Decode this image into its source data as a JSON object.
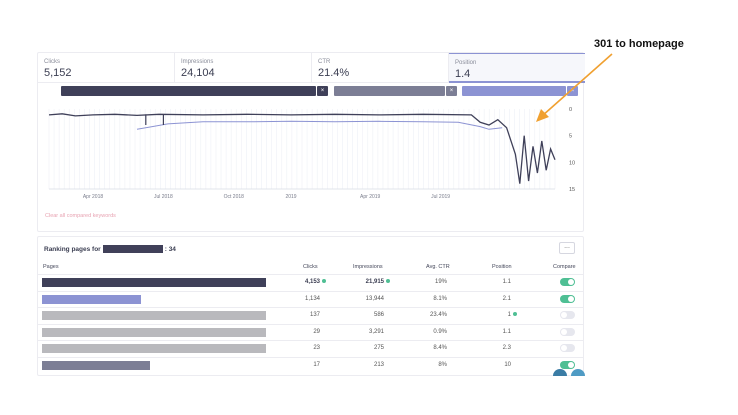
{
  "metrics": [
    {
      "label": "Clicks",
      "value": "5,152"
    },
    {
      "label": "Impressions",
      "value": "24,104"
    },
    {
      "label": "CTR",
      "value": "21.4%"
    },
    {
      "label": "Position",
      "value": "1.4"
    }
  ],
  "keyword_chips": [
    {
      "color": "#3f4059",
      "remove_label": "×"
    },
    {
      "color": "#7c7e95",
      "remove_label": "×"
    },
    {
      "color": "#8c93d3",
      "remove_label": "×"
    }
  ],
  "annotation": "301 to homepage",
  "chart_data": {
    "type": "line",
    "x_tick_labels": [
      "Apr 2018",
      "Jul 2018",
      "Oct 2018",
      "2019",
      "Apr 2019",
      "Jul 2019"
    ],
    "y_tick_labels": [
      "0",
      "5",
      "10",
      "15"
    ],
    "ylim": [
      15,
      0
    ],
    "y_axis_side": "right",
    "y_inverted": true,
    "grid": "vertical",
    "series": [
      {
        "color": "#3f4059",
        "points": [
          [
            0,
            1.1
          ],
          [
            0.03,
            0.9
          ],
          [
            0.06,
            1.3
          ],
          [
            0.1,
            1.1
          ],
          [
            0.15,
            1.0
          ],
          [
            0.2,
            1.2
          ],
          [
            0.25,
            1.0
          ],
          [
            0.35,
            1.1
          ],
          [
            0.45,
            1.0
          ],
          [
            0.55,
            1.1
          ],
          [
            0.65,
            1.0
          ],
          [
            0.75,
            1.1
          ],
          [
            0.85,
            1.0
          ],
          [
            0.96,
            1.1
          ],
          [
            0.98,
            2.5
          ],
          [
            1.0,
            3.0
          ],
          [
            1.02,
            2.0
          ],
          [
            1.04,
            3.5
          ],
          [
            1.06,
            8.5
          ],
          [
            1.07,
            14.0
          ],
          [
            1.08,
            5.0
          ],
          [
            1.09,
            13.5
          ],
          [
            1.1,
            7.0
          ],
          [
            1.11,
            12.0
          ],
          [
            1.12,
            6.0
          ],
          [
            1.13,
            11.5
          ],
          [
            1.14,
            7.5
          ],
          [
            1.15,
            9.5
          ]
        ]
      },
      {
        "color": "#8c93d3",
        "points": [
          [
            0.2,
            3.8
          ],
          [
            0.27,
            2.8
          ],
          [
            0.35,
            2.4
          ],
          [
            0.45,
            2.4
          ],
          [
            0.55,
            2.3
          ],
          [
            0.65,
            2.4
          ],
          [
            0.75,
            2.3
          ],
          [
            0.85,
            2.4
          ],
          [
            0.93,
            2.5
          ],
          [
            0.98,
            3.3
          ],
          [
            1.0,
            3.8
          ],
          [
            1.03,
            3.5
          ]
        ]
      }
    ]
  },
  "clear_link": "Clear all compared keywords",
  "ranking": {
    "title_prefix": "Ranking pages for",
    "title_suffix": ": 34",
    "more_label": "...",
    "headers": {
      "pages": "Pages",
      "clicks": "Clicks",
      "impressions": "Impressions",
      "ctr": "Avg. CTR",
      "position": "Position",
      "compare": "Compare"
    },
    "rows": [
      {
        "bar_color": "#3f4059",
        "bar_fraction": 1.0,
        "clicks": "4,153",
        "impressions": "21,915",
        "ctr": "19%",
        "position": "1.1",
        "clicks_dot": true,
        "impr_dot": true,
        "pos_dot": false,
        "bold": true,
        "compare": "on",
        "toggle_color": "#4fbf94"
      },
      {
        "bar_color": "#8c93d3",
        "bar_fraction": 0.44,
        "clicks": "1,134",
        "impressions": "13,944",
        "ctr": "8.1%",
        "position": "2.1",
        "clicks_dot": false,
        "impr_dot": false,
        "pos_dot": false,
        "bold": false,
        "compare": "on",
        "toggle_color": "#4fbf94"
      },
      {
        "bar_color": "#b9b9bd",
        "bar_fraction": 1.0,
        "clicks": "137",
        "impressions": "586",
        "ctr": "23.4%",
        "position": "1",
        "clicks_dot": false,
        "impr_dot": false,
        "pos_dot": true,
        "bold": false,
        "compare": "off",
        "toggle_color": "#e6e7ee"
      },
      {
        "bar_color": "#b9b9bd",
        "bar_fraction": 1.0,
        "clicks": "29",
        "impressions": "3,291",
        "ctr": "0.9%",
        "position": "1.1",
        "clicks_dot": false,
        "impr_dot": false,
        "pos_dot": false,
        "bold": false,
        "compare": "off",
        "toggle_color": "#e6e7ee"
      },
      {
        "bar_color": "#b9b9bd",
        "bar_fraction": 1.0,
        "clicks": "23",
        "impressions": "275",
        "ctr": "8.4%",
        "position": "2.3",
        "clicks_dot": false,
        "impr_dot": false,
        "pos_dot": false,
        "bold": false,
        "compare": "off",
        "toggle_color": "#e6e7ee"
      },
      {
        "bar_color": "#7c7e95",
        "bar_fraction": 0.48,
        "clicks": "17",
        "impressions": "213",
        "ctr": "8%",
        "position": "10",
        "clicks_dot": false,
        "impr_dot": false,
        "pos_dot": false,
        "bold": false,
        "compare": "on",
        "toggle_color": "#4fbf94"
      }
    ]
  },
  "colors": {
    "accent": "#8c93d3",
    "dark": "#3f4059",
    "toggle_on": "#4fbf94",
    "annotation_arrow": "#f0a030",
    "link": "#e8a3b2"
  }
}
